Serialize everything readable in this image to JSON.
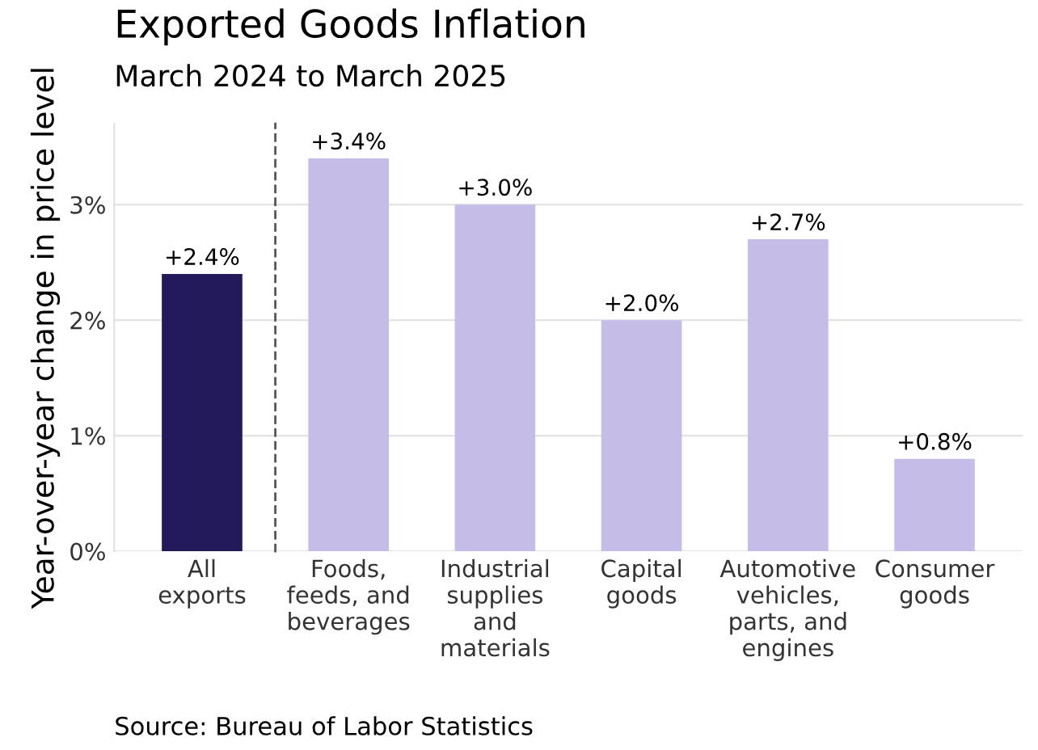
{
  "chart_data": {
    "type": "bar",
    "title": "Exported Goods Inflation",
    "subtitle": "March 2024 to March 2025",
    "ylabel": "Year-over-year change in price level",
    "categories": [
      "All\nexports",
      "Foods,\nfeeds, and\nbeverages",
      "Industrial\nsupplies\nand\nmaterials",
      "Capital\ngoods",
      "Automotive\nvehicles,\nparts, and\nengines",
      "Consumer\ngoods"
    ],
    "values": [
      2.4,
      3.4,
      3.0,
      2.0,
      2.7,
      0.8
    ],
    "colors": [
      "#231a5c",
      "#c5bde8",
      "#c5bde8",
      "#c5bde8",
      "#c5bde8",
      "#c5bde8"
    ],
    "value_labels": [
      "+2.4%",
      "+3.4%",
      "+3.0%",
      "+2.0%",
      "+2.7%",
      "+0.8%"
    ],
    "ylim": [
      0,
      3.7
    ],
    "yticks": [
      {
        "value": 0,
        "label": "0%"
      },
      {
        "value": 1,
        "label": "1%"
      },
      {
        "value": 2,
        "label": "2%"
      },
      {
        "value": 3,
        "label": "3%"
      }
    ],
    "grid": "y",
    "annotations": [
      "Source: Bureau of Labor Statistics"
    ]
  }
}
